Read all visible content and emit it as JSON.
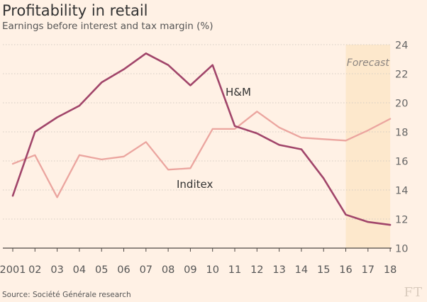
{
  "title": "Profitability in retail",
  "subtitle": "Earnings before interest and tax margin (%)",
  "source": "Source: Société Générale research",
  "logo": "FT",
  "colors": {
    "background": "#fff1e5",
    "hm": "#a1456a",
    "inditex": "#eba59f",
    "forecast_band": "#fde8cc",
    "grid": "#d4cbc2",
    "axis": "#4d4845",
    "text": "#555555"
  },
  "chart_data": {
    "type": "line",
    "title": "Profitability in retail",
    "subtitle": "Earnings before interest and tax margin (%)",
    "xlabel": "",
    "ylabel": "",
    "x": [
      "2001",
      "02",
      "03",
      "04",
      "05",
      "06",
      "07",
      "08",
      "09",
      "10",
      "11",
      "12",
      "13",
      "14",
      "15",
      "16",
      "17",
      "18"
    ],
    "ylim": [
      10,
      24
    ],
    "yticks": [
      10,
      12,
      14,
      16,
      18,
      20,
      22,
      24
    ],
    "y_axis_side": "right",
    "grid": true,
    "series": [
      {
        "name": "H&M",
        "color": "#a1456a",
        "values": [
          13.6,
          18.0,
          19.0,
          19.8,
          21.4,
          22.3,
          23.4,
          22.6,
          21.2,
          22.6,
          18.4,
          17.9,
          17.1,
          16.8,
          14.8,
          12.3,
          11.8,
          11.6
        ]
      },
      {
        "name": "Inditex",
        "color": "#eba59f",
        "values": [
          15.8,
          16.4,
          13.5,
          16.4,
          16.1,
          16.3,
          17.3,
          15.4,
          15.5,
          18.2,
          18.2,
          19.4,
          18.3,
          17.6,
          17.5,
          17.4,
          18.1,
          18.9
        ]
      }
    ],
    "annotations": [
      {
        "text": "Forecast",
        "from": "16",
        "to": "18",
        "kind": "shaded-band"
      },
      {
        "text": "H&M",
        "series": "H&M"
      },
      {
        "text": "Inditex",
        "series": "Inditex"
      }
    ]
  }
}
